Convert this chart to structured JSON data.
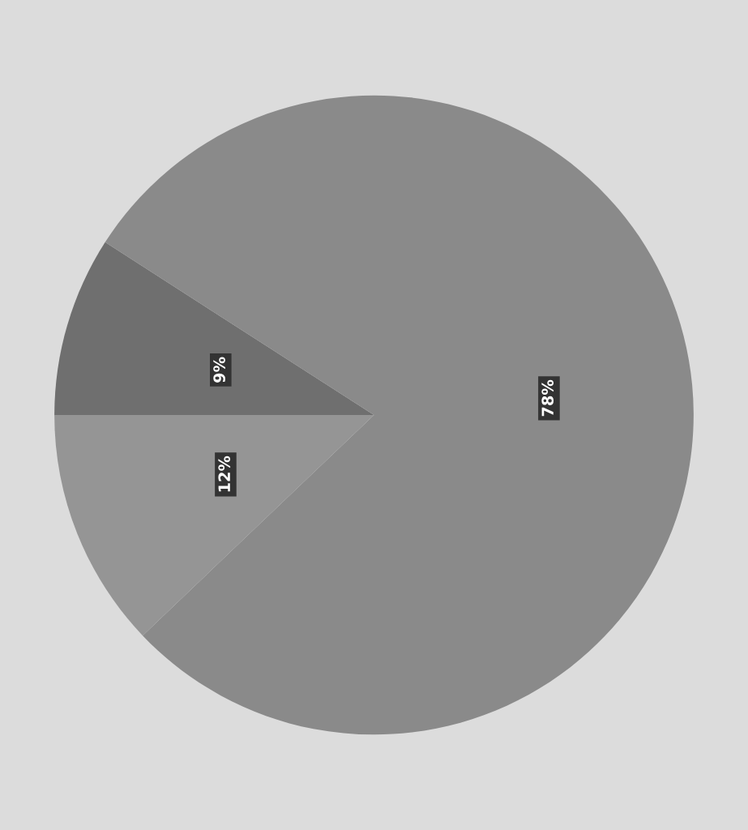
{
  "chart_data": {
    "type": "pie",
    "categories": [
      null,
      null,
      null
    ],
    "values": [
      9,
      78,
      12
    ],
    "colors": [
      "#6f6f6f",
      "#8a8a8a",
      "#959595"
    ],
    "value_labels": [
      "9%",
      "78%",
      "12%"
    ]
  }
}
